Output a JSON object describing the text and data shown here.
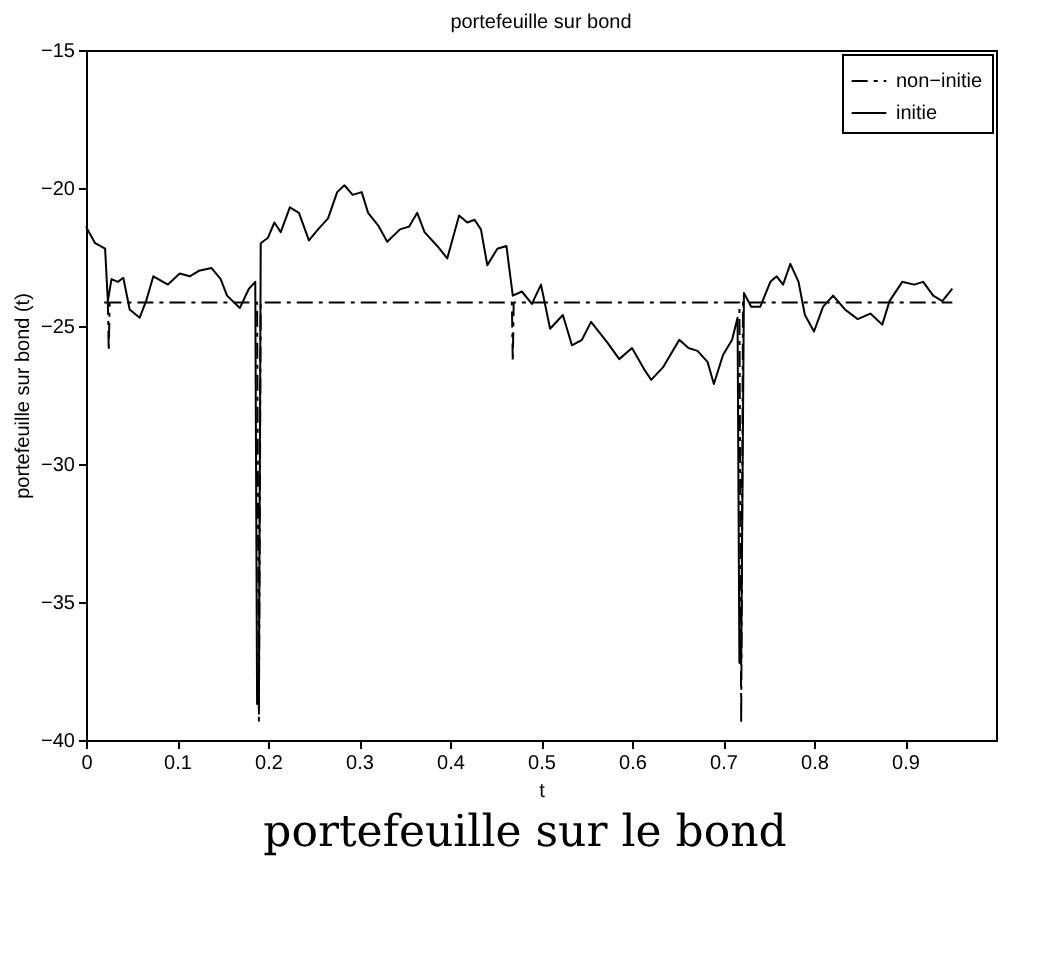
{
  "chart_data": {
    "type": "line",
    "title": "portefeuille sur bond",
    "xlabel": "t",
    "ylabel": "portefeuille sur bond  (t)",
    "annotations": [
      "portefeuille sur le bond"
    ],
    "xlim": [
      0,
      1
    ],
    "ylim": [
      -40,
      -15
    ],
    "xticks": [
      0,
      0.1,
      0.2,
      0.3,
      0.4,
      0.5,
      0.6,
      0.7,
      0.8,
      0.9
    ],
    "yticks": [
      -40,
      -35,
      -30,
      -25,
      -20,
      -15
    ],
    "grid": false,
    "legend": "top right",
    "series": [
      {
        "name": "non−initie",
        "color": "#000000",
        "line_style": "dashed",
        "x": [
          0.02,
          0.024,
          0.025,
          0.026,
          0.188,
          0.19,
          0.192,
          0.468,
          0.469,
          0.47,
          0.718,
          0.72,
          0.722,
          0.952
        ],
        "values": [
          -24.15,
          -24.15,
          -25.9,
          -24.15,
          -24.15,
          -39.3,
          -24.15,
          -24.15,
          -26.3,
          -24.15,
          -24.15,
          -39.4,
          -24.15,
          -24.15
        ]
      },
      {
        "name": "initie",
        "color": "#000000",
        "line_style": "solid",
        "x": [
          0,
          0.01,
          0.021,
          0.024,
          0.028,
          0.035,
          0.041,
          0.048,
          0.059,
          0.066,
          0.074,
          0.09,
          0.103,
          0.114,
          0.124,
          0.138,
          0.148,
          0.155,
          0.169,
          0.179,
          0.186,
          0.188,
          0.19,
          0.192,
          0.2,
          0.207,
          0.214,
          0.224,
          0.234,
          0.245,
          0.255,
          0.266,
          0.276,
          0.284,
          0.293,
          0.303,
          0.31,
          0.321,
          0.331,
          0.345,
          0.355,
          0.364,
          0.372,
          0.386,
          0.397,
          0.41,
          0.419,
          0.427,
          0.434,
          0.441,
          0.452,
          0.462,
          0.469,
          0.479,
          0.49,
          0.5,
          0.51,
          0.524,
          0.534,
          0.545,
          0.555,
          0.573,
          0.586,
          0.6,
          0.614,
          0.621,
          0.634,
          0.652,
          0.662,
          0.672,
          0.683,
          0.69,
          0.7,
          0.71,
          0.716,
          0.718,
          0.72,
          0.723,
          0.731,
          0.741,
          0.752,
          0.759,
          0.766,
          0.774,
          0.783,
          0.79,
          0.8,
          0.81,
          0.821,
          0.834,
          0.848,
          0.862,
          0.875,
          0.883,
          0.897,
          0.91,
          0.92,
          0.931,
          0.941,
          0.952
        ],
        "values": [
          -21.4,
          -22.0,
          -22.2,
          -24.1,
          -23.3,
          -23.4,
          -23.25,
          -24.4,
          -24.7,
          -24.1,
          -23.2,
          -23.5,
          -23.1,
          -23.2,
          -23.0,
          -22.9,
          -23.3,
          -23.9,
          -24.35,
          -23.65,
          -23.4,
          -38.7,
          -38.7,
          -22.0,
          -21.8,
          -21.25,
          -21.6,
          -20.7,
          -20.9,
          -21.9,
          -21.5,
          -21.1,
          -20.15,
          -19.9,
          -20.25,
          -20.15,
          -20.9,
          -21.35,
          -21.95,
          -21.5,
          -21.4,
          -20.9,
          -21.6,
          -22.1,
          -22.55,
          -21.0,
          -21.25,
          -21.15,
          -21.5,
          -22.8,
          -22.2,
          -22.1,
          -23.9,
          -23.75,
          -24.2,
          -23.5,
          -25.1,
          -24.6,
          -25.7,
          -25.5,
          -24.85,
          -25.6,
          -26.2,
          -25.8,
          -26.6,
          -26.95,
          -26.5,
          -25.5,
          -25.8,
          -25.9,
          -26.3,
          -27.1,
          -26.05,
          -25.5,
          -24.7,
          -37.2,
          -37.2,
          -23.8,
          -24.3,
          -24.3,
          -23.4,
          -23.2,
          -23.5,
          -22.75,
          -23.4,
          -24.6,
          -25.2,
          -24.3,
          -23.9,
          -24.4,
          -24.75,
          -24.55,
          -24.95,
          -24.1,
          -23.4,
          -23.5,
          -23.4,
          -23.9,
          -24.1,
          -23.65
        ]
      }
    ]
  }
}
